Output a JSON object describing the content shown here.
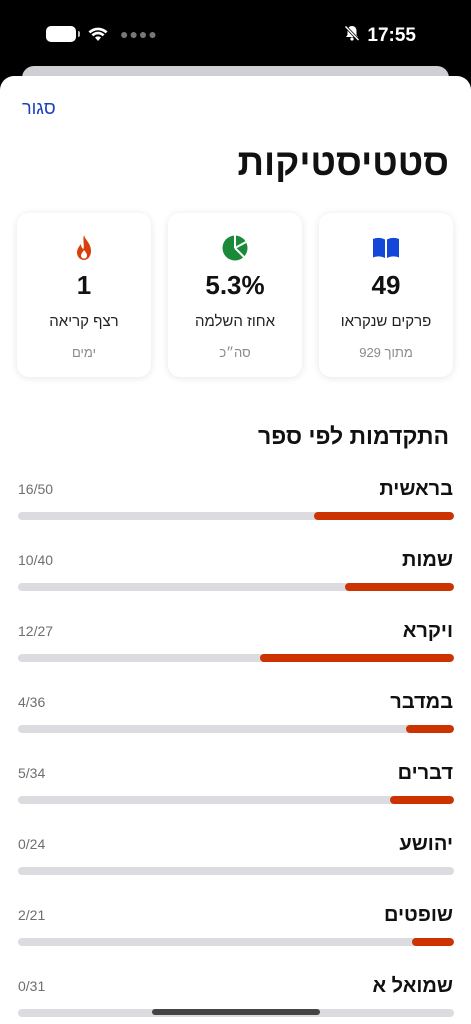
{
  "status_bar": {
    "time": "17:55",
    "icons": [
      "battery-icon",
      "wifi-icon",
      "signal-dots-icon",
      "bell-slash-icon"
    ]
  },
  "sheet": {
    "close_label": "סגור",
    "title": "סטטיסטיקות"
  },
  "stats": {
    "chapters": {
      "value": "49",
      "label": "פרקים שנקראו",
      "sub": "מתוך 929",
      "icon": "book-icon",
      "color": "#1347d9"
    },
    "percent": {
      "value": "5.3%",
      "label": "אחוז השלמה",
      "sub": "סה״כ",
      "icon": "pie-chart-icon",
      "color": "#1a8a3a"
    },
    "streak": {
      "value": "1",
      "label": "רצף קריאה",
      "sub": "ימים",
      "icon": "flame-icon",
      "color": "#d8400b"
    }
  },
  "progress": {
    "section_title": "התקדמות לפי ספר",
    "bar_color": "#cc3300",
    "track_color": "#dcdce0",
    "books": [
      {
        "name": "בראשית",
        "count": "16/50",
        "read": 16,
        "total": 50
      },
      {
        "name": "שמות",
        "count": "10/40",
        "read": 10,
        "total": 40
      },
      {
        "name": "ויקרא",
        "count": "12/27",
        "read": 12,
        "total": 27
      },
      {
        "name": "במדבר",
        "count": "4/36",
        "read": 4,
        "total": 36
      },
      {
        "name": "דברים",
        "count": "5/34",
        "read": 5,
        "total": 34
      },
      {
        "name": "יהושע",
        "count": "0/24",
        "read": 0,
        "total": 24
      },
      {
        "name": "שופטים",
        "count": "2/21",
        "read": 2,
        "total": 21
      },
      {
        "name": "שמואל א",
        "count": "0/31",
        "read": 0,
        "total": 31
      }
    ]
  }
}
